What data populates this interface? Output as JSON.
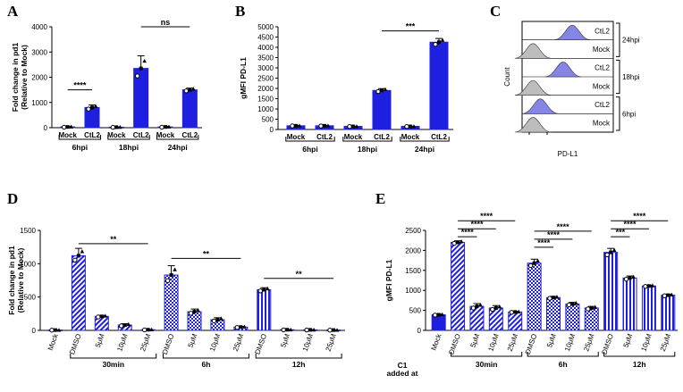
{
  "colors": {
    "blue": "#1f1fe0",
    "dark": "#000000",
    "histBlue": "#8585e8",
    "histGray": "#bdbdbd"
  },
  "panels": {
    "A": "A",
    "B": "B",
    "C": "C",
    "D": "D",
    "E": "E"
  },
  "chart_data": [
    {
      "id": "A",
      "type": "bar",
      "ylabel": [
        "Fold change in pd1",
        "(Relative to Mock)"
      ],
      "ylim": [
        0,
        4000
      ],
      "yticks": [
        "0",
        "1000",
        "2000",
        "3000",
        "4000"
      ],
      "categories": [
        "Mock",
        "CtL2",
        "Mock",
        "CtL2",
        "Mock",
        "CtL2"
      ],
      "values": [
        30,
        800,
        20,
        2350,
        30,
        1500
      ],
      "errors": [
        20,
        100,
        10,
        500,
        20,
        70
      ],
      "pattern": [
        "solid",
        "solid",
        "solid",
        "solid",
        "solid",
        "solid"
      ],
      "groups": [
        {
          "label": "6hpi",
          "from": 0,
          "to": 1
        },
        {
          "label": "18hpi",
          "from": 2,
          "to": 3
        },
        {
          "label": "24hpi",
          "from": 4,
          "to": 5
        }
      ],
      "significance": [
        {
          "from": 0,
          "to": 1,
          "label": "****",
          "y": 1500
        },
        {
          "from": 3,
          "to": 5,
          "label": "ns",
          "y": 4000
        }
      ]
    },
    {
      "id": "B",
      "type": "bar",
      "ylabel": [
        "gMFI PD-L1"
      ],
      "ylim": [
        0,
        5000
      ],
      "yticks": [
        "0",
        "500",
        "1000",
        "1500",
        "2000",
        "2500",
        "3000",
        "3500",
        "4000",
        "4500",
        "5000"
      ],
      "categories": [
        "Mock",
        "CtL2",
        "Mock",
        "CtL2",
        "Mock",
        "CtL2"
      ],
      "values": [
        180,
        180,
        150,
        1900,
        150,
        4250
      ],
      "errors": [
        10,
        15,
        10,
        90,
        10,
        180
      ],
      "pattern": [
        "solid",
        "solid",
        "solid",
        "solid",
        "solid",
        "solid"
      ],
      "groups": [
        {
          "label": "6hpi",
          "from": 0,
          "to": 1
        },
        {
          "label": "18hpi",
          "from": 2,
          "to": 3
        },
        {
          "label": "24hpi",
          "from": 4,
          "to": 5
        }
      ],
      "significance": [
        {
          "from": 3,
          "to": 5,
          "label": "***",
          "y": 4800
        }
      ]
    },
    {
      "id": "C",
      "type": "histogram",
      "ylabel": "Count",
      "xlabel": "PD-L1",
      "rows": [
        "CtL2",
        "Mock",
        "CtL2",
        "Mock",
        "CtL2",
        "Mock"
      ],
      "fill": [
        "blue",
        "gray",
        "blue",
        "gray",
        "blue",
        "gray"
      ],
      "peak": [
        0.55,
        0.12,
        0.45,
        0.12,
        0.2,
        0.12
      ],
      "groups": [
        {
          "label": "24hpi",
          "rows": [
            0,
            1
          ]
        },
        {
          "label": "18hpi",
          "rows": [
            2,
            3
          ]
        },
        {
          "label": "6hpi",
          "rows": [
            4,
            5
          ]
        }
      ]
    },
    {
      "id": "D",
      "type": "bar",
      "ylabel": [
        "Fold change in pd1",
        "(Relative to Mock)"
      ],
      "ylim": [
        0,
        1500
      ],
      "yticks": [
        "0",
        "500",
        "1000",
        "1500"
      ],
      "categories": [
        "Mock",
        "DMSO",
        "5μM",
        "10μM",
        "25μM",
        "DMSO",
        "5μM",
        "10μM",
        "25μM",
        "DMSO",
        "5μM",
        "10μM",
        "25μM"
      ],
      "values": [
        5,
        1120,
        210,
        80,
        10,
        830,
        280,
        160,
        50,
        610,
        10,
        8,
        5
      ],
      "errors": [
        3,
        110,
        15,
        20,
        5,
        140,
        40,
        30,
        10,
        30,
        3,
        3,
        3
      ],
      "pattern": [
        "solid",
        "diag",
        "diag",
        "diag",
        "diag",
        "check",
        "check",
        "check",
        "check",
        "vert",
        "vert",
        "vert",
        "vert"
      ],
      "groups": [
        {
          "label": "30min",
          "from": 1,
          "to": 4
        },
        {
          "label": "6h",
          "from": 5,
          "to": 8
        },
        {
          "label": "12h",
          "from": 9,
          "to": 12
        }
      ],
      "significance": [
        {
          "from": 1,
          "to": 4,
          "label": "**",
          "y": 1300
        },
        {
          "from": 5,
          "to": 8,
          "label": "**",
          "y": 1080
        },
        {
          "from": 9,
          "to": 12,
          "label": "**",
          "y": 780
        }
      ]
    },
    {
      "id": "E",
      "type": "bar",
      "ylabel": [
        "gMFI PD-L1"
      ],
      "ylim": [
        0,
        2500
      ],
      "yticks": [
        "0",
        "500",
        "1000",
        "1500",
        "2000",
        "2500"
      ],
      "categories": [
        "Mock",
        "DMSO",
        "5μM",
        "10μM",
        "25μM",
        "DMSO",
        "5μM",
        "10μM",
        "25μM",
        "DMSO",
        "5μM",
        "10μM",
        "25μM"
      ],
      "values": [
        390,
        2200,
        600,
        560,
        460,
        1680,
        820,
        660,
        560,
        1950,
        1310,
        1110,
        880
      ],
      "errors": [
        15,
        40,
        70,
        60,
        15,
        100,
        30,
        40,
        40,
        100,
        50,
        20,
        25
      ],
      "pattern": [
        "solid",
        "diag",
        "diag",
        "diag",
        "diag",
        "check",
        "check",
        "check",
        "check",
        "vert",
        "vert",
        "vert",
        "vert"
      ],
      "groups": [
        {
          "label": "30min",
          "from": 1,
          "to": 4
        },
        {
          "label": "6h",
          "from": 5,
          "to": 8
        },
        {
          "label": "12h",
          "from": 9,
          "to": 12
        }
      ],
      "significance": [
        {
          "from": 1,
          "to": 2,
          "label": "****",
          "y": 2340
        },
        {
          "from": 1,
          "to": 3,
          "label": "****",
          "y": 2540
        },
        {
          "from": 1,
          "to": 4,
          "label": "****",
          "y": 2740
        },
        {
          "from": 5,
          "to": 6,
          "label": "****",
          "y": 2080
        },
        {
          "from": 5,
          "to": 7,
          "label": "****",
          "y": 2280
        },
        {
          "from": 5,
          "to": 8,
          "label": "****",
          "y": 2480
        },
        {
          "from": 9,
          "to": 10,
          "label": "***",
          "y": 2340
        },
        {
          "from": 9,
          "to": 11,
          "label": "****",
          "y": 2540
        },
        {
          "from": 9,
          "to": 12,
          "label": "****",
          "y": 2740
        }
      ],
      "c1_label": [
        "C1",
        "added at"
      ]
    }
  ]
}
